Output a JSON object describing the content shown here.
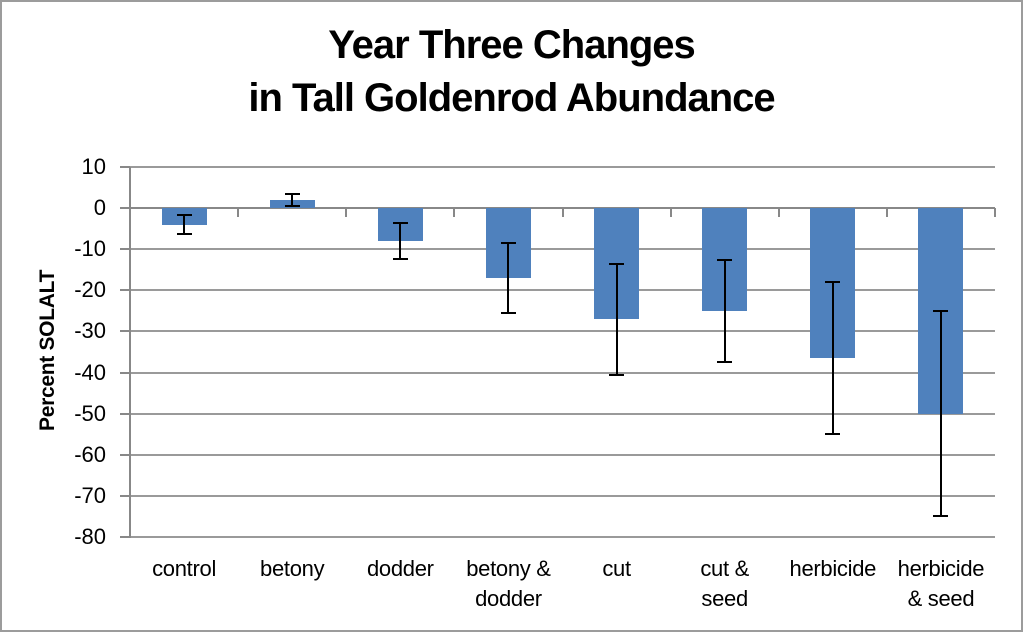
{
  "window": {
    "background": "#ffffff",
    "border_color": "#9c9c9c"
  },
  "chart_data": {
    "type": "bar",
    "title_lines": [
      "Year Three Changes",
      "in Tall Goldenrod Abundance"
    ],
    "title": "Year Three Changes in Tall Goldenrod Abundance",
    "ylabel": "Percent SOLALT",
    "xlabel": "",
    "ylim": [
      -80,
      10
    ],
    "ytick_step": 10,
    "ytick_labels": [
      "10",
      "0",
      "-10",
      "-20",
      "-30",
      "-40",
      "-50",
      "-60",
      "-70",
      "-80"
    ],
    "grid": true,
    "legend": "none",
    "categories": [
      "control",
      "betony",
      "dodder",
      "betony & dodder",
      "cut",
      "cut & seed",
      "herbicide",
      "herbicide & seed"
    ],
    "category_label_lines": [
      [
        "control"
      ],
      [
        "betony"
      ],
      [
        "dodder"
      ],
      [
        "betony &",
        "dodder"
      ],
      [
        "cut"
      ],
      [
        "cut &",
        "seed"
      ],
      [
        "herbicide"
      ],
      [
        "herbicide",
        "& seed"
      ]
    ],
    "values": [
      -4,
      2,
      -8,
      -17,
      -27,
      -25,
      -36.5,
      -50
    ],
    "error_bars": [
      2.3,
      1.4,
      4.3,
      8.6,
      13.5,
      12.5,
      18.5,
      25
    ],
    "colors": {
      "bar_fill": "#4f81bd",
      "error_bar": "#000000",
      "gridline": "#9a9a9a",
      "axis": "#888888",
      "text": "#000000"
    }
  }
}
